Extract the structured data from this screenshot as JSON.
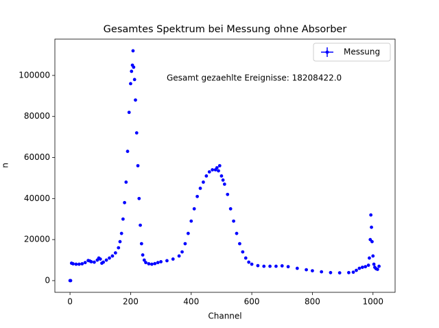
{
  "chart_data": {
    "type": "scatter",
    "title": "Gesamtes Spektrum bei Messung ohne Absorber",
    "x_label": "Channel",
    "y_label": "n",
    "annotation": "Gesamt gezaehlte Ereignisse: 18208422.0",
    "legend": "upper right",
    "xlim": [
      -50,
      1073
    ],
    "ylim": [
      -5700,
      117700
    ],
    "xticks": [
      0,
      200,
      400,
      600,
      800,
      1000
    ],
    "yticks": [
      0,
      20000,
      40000,
      60000,
      80000,
      100000
    ],
    "x": [
      0,
      2,
      5,
      10,
      20,
      30,
      40,
      50,
      60,
      65,
      70,
      80,
      90,
      95,
      100,
      105,
      110,
      120,
      130,
      140,
      150,
      160,
      165,
      170,
      175,
      180,
      185,
      190,
      195,
      200,
      203,
      206,
      208,
      210,
      213,
      216,
      220,
      224,
      228,
      232,
      236,
      240,
      245,
      250,
      260,
      270,
      280,
      290,
      300,
      320,
      340,
      360,
      370,
      380,
      390,
      400,
      410,
      420,
      430,
      440,
      450,
      460,
      470,
      480,
      485,
      490,
      494,
      500,
      505,
      510,
      520,
      530,
      540,
      550,
      560,
      570,
      580,
      590,
      600,
      620,
      640,
      660,
      680,
      700,
      720,
      750,
      780,
      800,
      830,
      860,
      890,
      920,
      935,
      945,
      955,
      965,
      975,
      985,
      988,
      991,
      993,
      995,
      997,
      1000,
      1003,
      1006,
      1010,
      1015,
      1020
    ],
    "series": [
      {
        "name": "Messung",
        "color": "#0000ff",
        "values": [
          0,
          0,
          8500,
          8200,
          8000,
          8000,
          8200,
          8800,
          9800,
          9600,
          9200,
          9000,
          10000,
          11000,
          10500,
          8500,
          9000,
          10000,
          11000,
          12000,
          13500,
          16000,
          19000,
          23000,
          30000,
          38000,
          48000,
          63000,
          82000,
          96000,
          102000,
          105000,
          112000,
          104000,
          98000,
          88000,
          72000,
          56000,
          40000,
          27000,
          18000,
          12500,
          10000,
          8800,
          8200,
          8000,
          8300,
          8800,
          9200,
          9700,
          10500,
          12000,
          14000,
          18000,
          23000,
          29000,
          35000,
          41000,
          45000,
          48000,
          51000,
          53000,
          54000,
          54000,
          55000,
          53500,
          56000,
          51000,
          49000,
          47000,
          42000,
          35000,
          29000,
          23000,
          18000,
          14000,
          11000,
          9000,
          8000,
          7300,
          7000,
          7000,
          7000,
          7200,
          6800,
          6000,
          5300,
          4800,
          4300,
          3900,
          3800,
          3900,
          4100,
          5000,
          6000,
          6500,
          6800,
          7500,
          11000,
          20000,
          32000,
          26000,
          19000,
          12000,
          8000,
          6500,
          5800,
          5500,
          7000
        ]
      }
    ]
  }
}
